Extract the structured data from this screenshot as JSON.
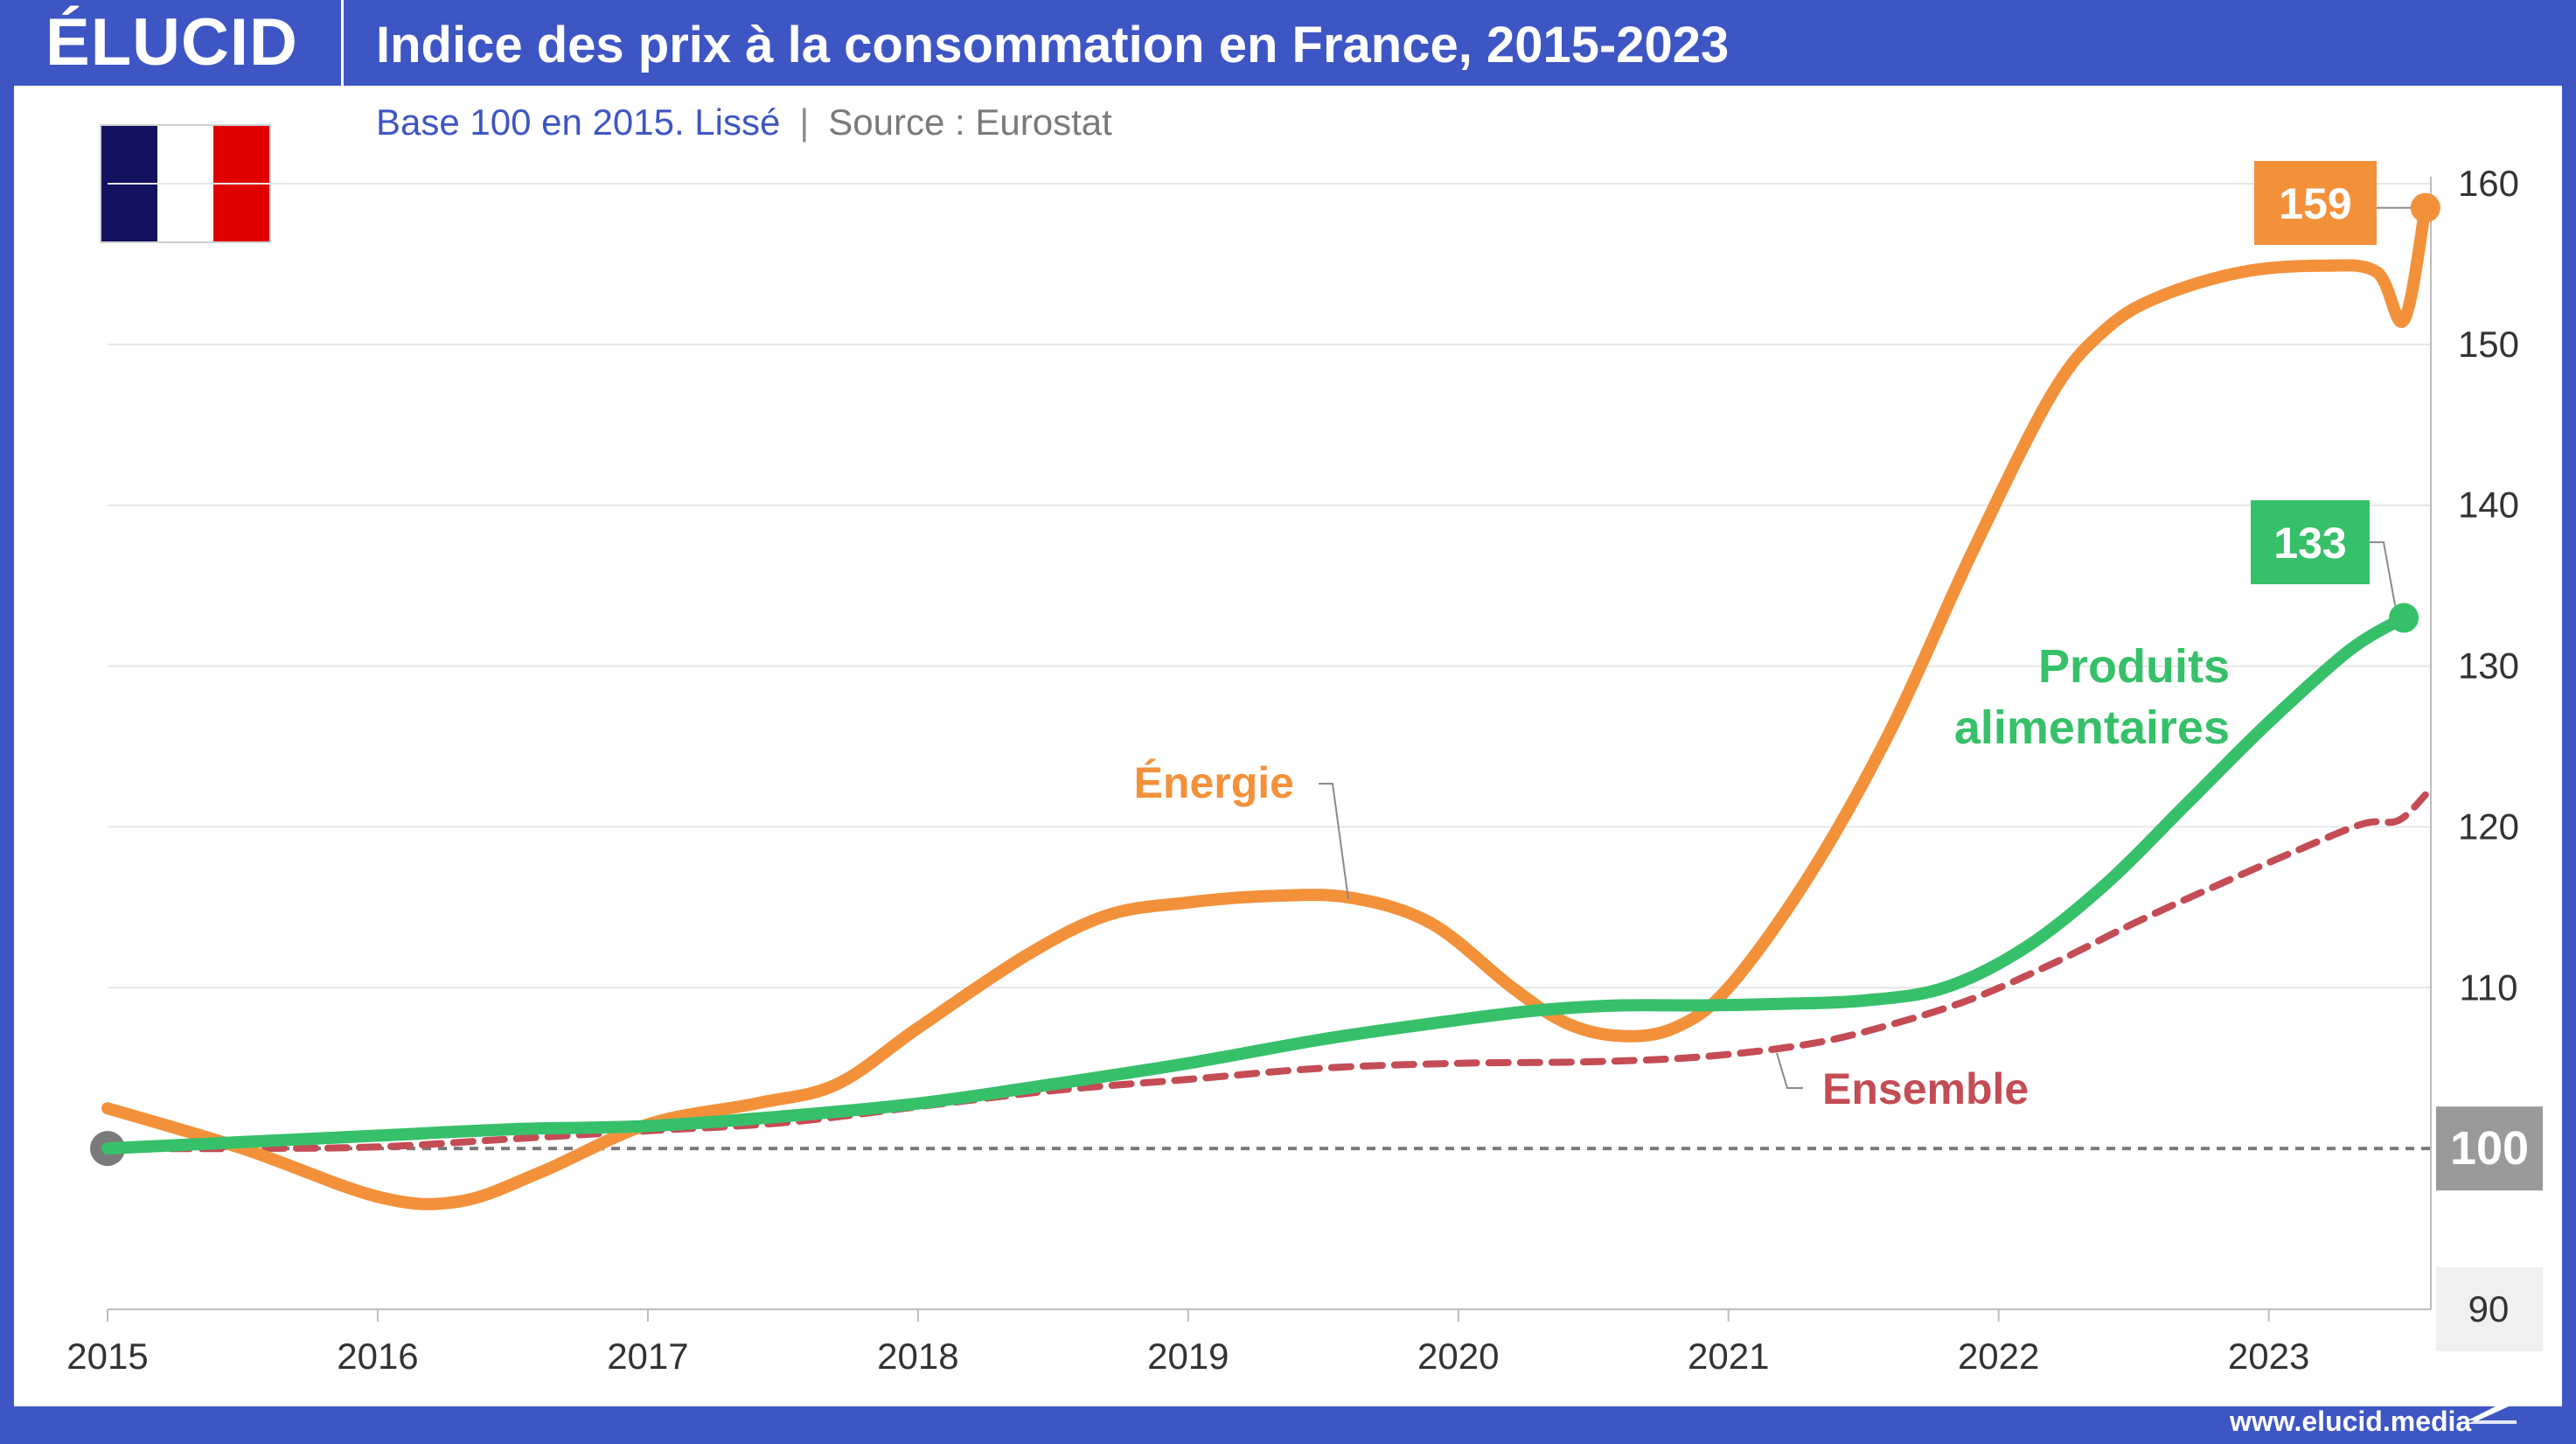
{
  "header": {
    "logo": "ÉLUCID",
    "title": "Indice des prix à la consommation en France, 2015-2023"
  },
  "subtitle": {
    "base": "Base 100 en 2015. Lissé",
    "separator": "|",
    "source": "Source : Eurostat"
  },
  "flag": {
    "colors": [
      "#12125e",
      "#ffffff",
      "#e00000"
    ]
  },
  "footer": {
    "url": "www.elucid.media"
  },
  "colors": {
    "energie": "#f3913b",
    "alimentaires": "#37c06a",
    "ensemble": "#c44c55",
    "baseline": "#7a7a7a",
    "grid": "#e6e6e6",
    "brand": "#3e56c4"
  },
  "chart_data": {
    "type": "line",
    "title": "Indice des prix à la consommation en France, 2015-2023",
    "subtitle": "Base 100 en 2015. Lissé",
    "source": "Source : Eurostat",
    "xlim": [
      2015,
      2023.6
    ],
    "ylim": [
      90,
      160
    ],
    "x_ticks": [
      "2015",
      "2016",
      "2017",
      "2018",
      "2019",
      "2020",
      "2021",
      "2022",
      "2023"
    ],
    "y_ticks": [
      "90",
      "100",
      "110",
      "120",
      "130",
      "140",
      "150",
      "160"
    ],
    "y_axis_position": "right",
    "grid": "horizontal",
    "reference_line": {
      "y": 100,
      "label": "100",
      "style": "dashed"
    },
    "series": [
      {
        "name": "Énergie",
        "end_label": "159",
        "x": [
          2015,
          2015.5,
          2016,
          2016.3,
          2016.6,
          2017,
          2017.4,
          2017.7,
          2018,
          2018.4,
          2018.7,
          2019,
          2019.3,
          2019.6,
          2019.9,
          2020.2,
          2020.4,
          2020.6,
          2020.8,
          2021,
          2021.3,
          2021.6,
          2021.9,
          2022.2,
          2022.4,
          2022.6,
          2022.9,
          2023.2,
          2023.4,
          2023.5,
          2023.58
        ],
        "y": [
          102.5,
          100,
          97,
          96.7,
          98.5,
          101.5,
          102.8,
          104,
          107.5,
          112,
          114.5,
          115.3,
          115.7,
          115.6,
          114,
          110,
          107.8,
          107,
          107.5,
          110,
          117,
          126,
          137,
          147,
          151,
          153,
          154.5,
          154.9,
          154.5,
          151.5,
          158.5
        ]
      },
      {
        "name": "Produits alimentaires",
        "end_label": "133",
        "x": [
          2015,
          2015.5,
          2016,
          2016.5,
          2017,
          2017.5,
          2018,
          2018.5,
          2019,
          2019.5,
          2020,
          2020.3,
          2020.6,
          2020.9,
          2021.2,
          2021.5,
          2021.8,
          2022.1,
          2022.4,
          2022.7,
          2023,
          2023.3,
          2023.5
        ],
        "y": [
          100,
          100.4,
          100.8,
          101.2,
          101.4,
          102,
          102.8,
          104,
          105.3,
          106.8,
          108,
          108.6,
          108.9,
          108.9,
          109,
          109.2,
          110,
          112.5,
          116.5,
          121.5,
          126.5,
          131,
          133
        ]
      },
      {
        "name": "Ensemble",
        "end_label": "",
        "x": [
          2015,
          2015.5,
          2016,
          2016.5,
          2017,
          2017.5,
          2018,
          2018.5,
          2019,
          2019.5,
          2020,
          2020.5,
          2020.9,
          2021.3,
          2021.6,
          2021.9,
          2022.2,
          2022.5,
          2022.8,
          2023.1,
          2023.35,
          2023.48,
          2023.58
        ],
        "y": [
          100,
          100,
          100.1,
          100.6,
          101.1,
          101.6,
          102.6,
          103.6,
          104.3,
          105,
          105.3,
          105.4,
          105.7,
          106.5,
          107.7,
          109.3,
          111.5,
          114,
          116.3,
          118.5,
          120.2,
          120.4,
          122
        ]
      }
    ],
    "annotations": [
      {
        "series": "Énergie",
        "text": "Énergie"
      },
      {
        "series": "Produits alimentaires",
        "text": "Produits alimentaires"
      },
      {
        "series": "Ensemble",
        "text": "Ensemble"
      }
    ]
  }
}
